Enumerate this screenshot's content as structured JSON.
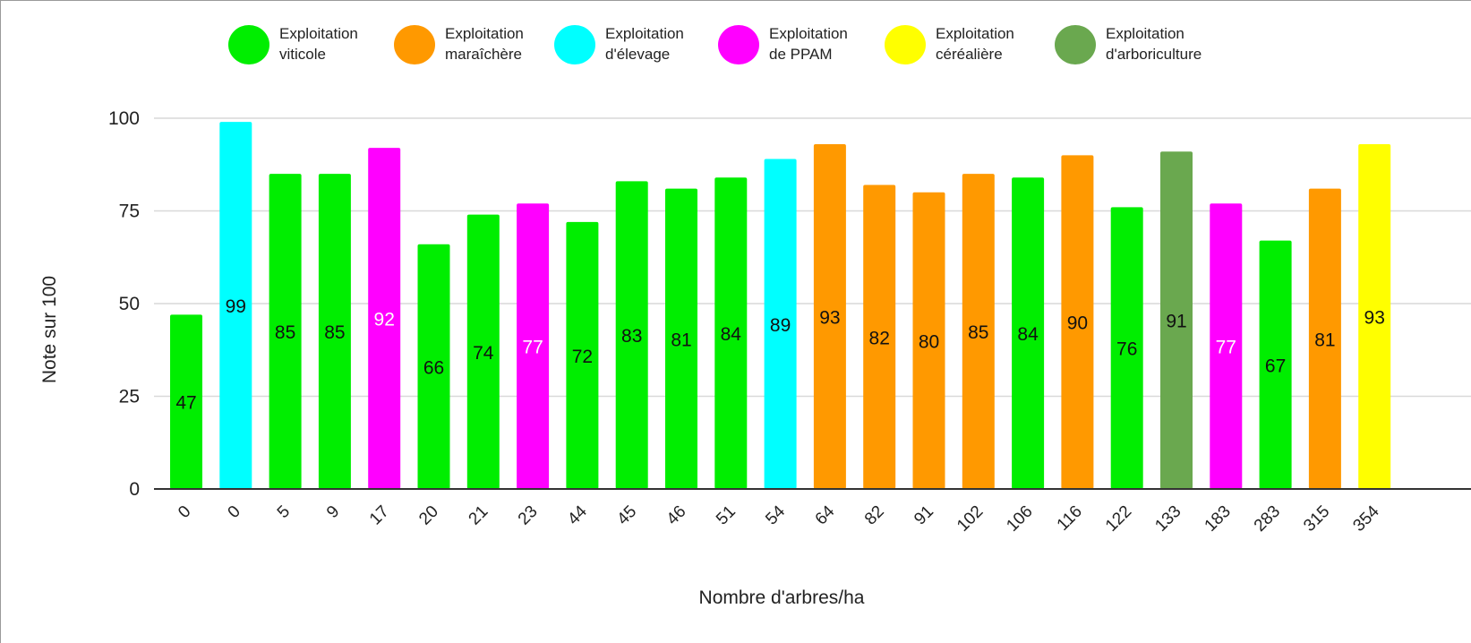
{
  "chart_data": {
    "type": "bar",
    "title": "",
    "xlabel": "Nombre d'arbres/ha",
    "ylabel": "Note sur 100",
    "ylim": [
      0,
      100
    ],
    "yticks": [
      0,
      25,
      50,
      75,
      100
    ],
    "grid": true,
    "legend_position": "top",
    "categories": [
      "0",
      "0",
      "5",
      "9",
      "17",
      "20",
      "21",
      "23",
      "44",
      "45",
      "46",
      "51",
      "54",
      "64",
      "82",
      "91",
      "102",
      "106",
      "116",
      "122",
      "133",
      "183",
      "283",
      "315",
      "354"
    ],
    "values": [
      47,
      99,
      85,
      85,
      92,
      66,
      74,
      77,
      72,
      83,
      81,
      84,
      89,
      93,
      82,
      80,
      85,
      84,
      90,
      76,
      91,
      77,
      67,
      81,
      93
    ],
    "data_labels": [
      "47",
      "99",
      "85",
      "85",
      "92",
      "66",
      "74",
      "77",
      "72",
      "83",
      "81",
      "84",
      "89",
      "93",
      "82",
      "80",
      "85",
      "84",
      "90",
      "76",
      "91",
      "77",
      "67",
      "81",
      "93"
    ],
    "bar_series": [
      0,
      2,
      0,
      0,
      3,
      0,
      0,
      3,
      0,
      0,
      0,
      0,
      2,
      1,
      1,
      1,
      1,
      0,
      1,
      0,
      5,
      3,
      0,
      1,
      4
    ],
    "series": [
      {
        "name": "Exploitation\nviticole",
        "color": "#00ee00"
      },
      {
        "name": "Exploitation\nmaraîchère",
        "color": "#ff9900"
      },
      {
        "name": "Exploitation\nd'élevage",
        "color": "#00ffff"
      },
      {
        "name": "Exploitation\nde PPAM",
        "color": "#ff00ff"
      },
      {
        "name": "Exploitation\ncéréalière",
        "color": "#ffff00"
      },
      {
        "name": "Exploitation\nd'arboriculture",
        "color": "#6aa84f"
      }
    ]
  }
}
